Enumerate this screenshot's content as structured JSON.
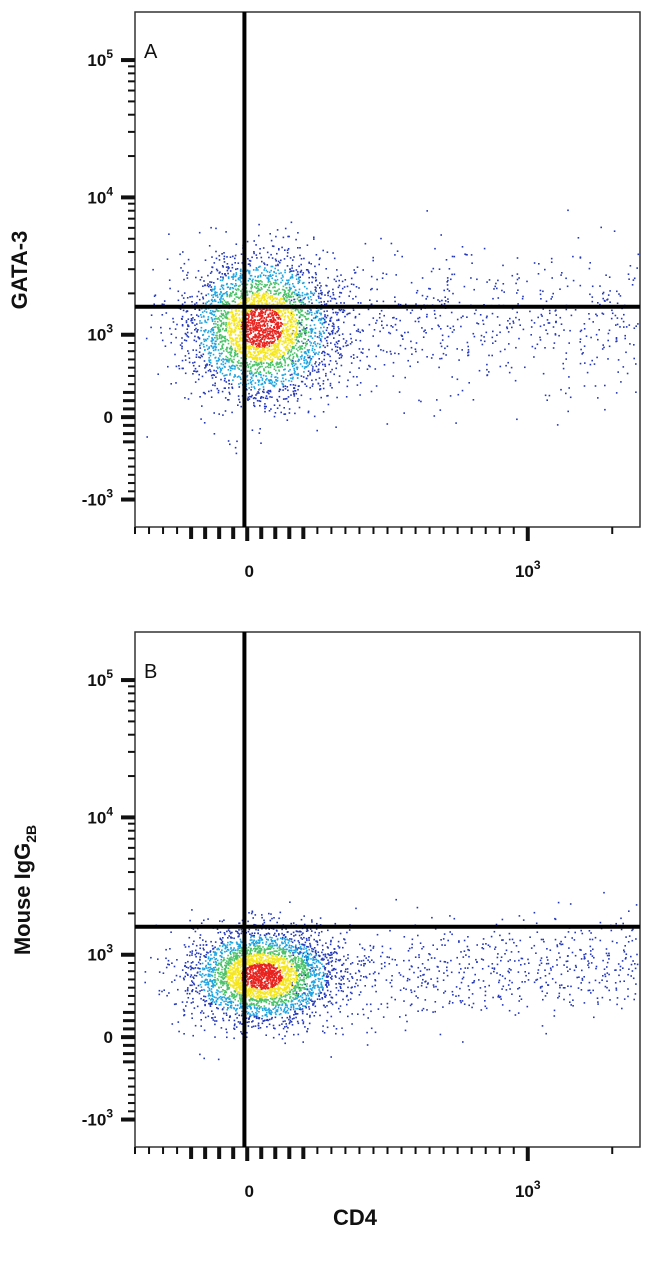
{
  "figure": {
    "xlabel": "CD4",
    "colors": {
      "frame": "#333333",
      "gate_line": "#000000",
      "density_low": "#2438b8",
      "density_mid1": "#1fa4e0",
      "density_mid2": "#4cc26a",
      "density_mid3": "#f5e61e",
      "density_high": "#e8231e"
    }
  },
  "chart_data": [
    {
      "type": "scatter",
      "panel_label": "A",
      "ylabel": "GATA-3",
      "ylabel_sub": "",
      "x_scale": "biexponential",
      "y_scale": "biexponential",
      "x_ticks": [
        {
          "value": 0,
          "label": "0",
          "exp": ""
        },
        {
          "value": 1000,
          "label": "10",
          "exp": "3"
        }
      ],
      "y_ticks": [
        {
          "value": 100000,
          "label": "10",
          "exp": "5"
        },
        {
          "value": 10000,
          "label": "10",
          "exp": "4"
        },
        {
          "value": 1000,
          "label": "10",
          "exp": "3"
        },
        {
          "value": 0,
          "label": "0",
          "exp": ""
        },
        {
          "value": -1000,
          "label": "-10",
          "exp": "3"
        }
      ],
      "gate": {
        "x": -10,
        "y": 1600
      },
      "population": {
        "center_x": 50,
        "center_y": 1150,
        "extends_to_x": 2800,
        "extends_to_y": 9000
      },
      "color_scale": "density (blue-green-yellow-red)"
    },
    {
      "type": "scatter",
      "panel_label": "B",
      "ylabel": "Mouse IgG",
      "ylabel_sub": "2B",
      "x_scale": "biexponential",
      "y_scale": "biexponential",
      "x_ticks": [
        {
          "value": 0,
          "label": "0",
          "exp": ""
        },
        {
          "value": 1000,
          "label": "10",
          "exp": "3"
        }
      ],
      "y_ticks": [
        {
          "value": 100000,
          "label": "10",
          "exp": "5"
        },
        {
          "value": 10000,
          "label": "10",
          "exp": "4"
        },
        {
          "value": 1000,
          "label": "10",
          "exp": "3"
        },
        {
          "value": 0,
          "label": "0",
          "exp": ""
        },
        {
          "value": -1000,
          "label": "-10",
          "exp": "3"
        }
      ],
      "gate": {
        "x": -10,
        "y": 1600
      },
      "population": {
        "center_x": 50,
        "center_y": 750,
        "extends_to_x": 2800,
        "extends_to_y": 3000
      },
      "color_scale": "density (blue-green-yellow-red)"
    }
  ]
}
